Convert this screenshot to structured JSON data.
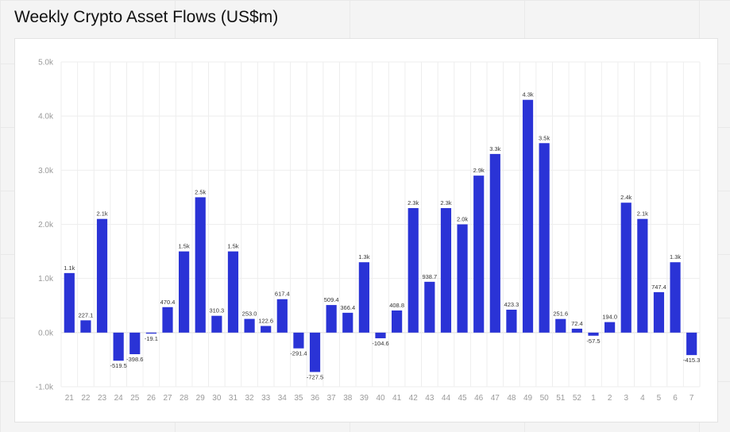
{
  "chart_data": {
    "type": "bar",
    "title": "Weekly Crypto Asset Flows (US$m)",
    "xlabel": "",
    "ylabel": "",
    "ylim": [
      -1000,
      5000
    ],
    "yticks": [
      -1000,
      0,
      1000,
      2000,
      3000,
      4000,
      5000
    ],
    "ytick_labels": [
      "-1.0k",
      "0.0k",
      "1.0k",
      "2.0k",
      "3.0k",
      "4.0k",
      "5.0k"
    ],
    "grid": true,
    "color": "#2a33d6",
    "categories": [
      "21",
      "22",
      "23",
      "24",
      "25",
      "26",
      "27",
      "28",
      "29",
      "30",
      "31",
      "32",
      "33",
      "34",
      "35",
      "36",
      "37",
      "38",
      "39",
      "40",
      "41",
      "42",
      "43",
      "44",
      "45",
      "46",
      "47",
      "48",
      "49",
      "50",
      "51",
      "52",
      "1",
      "2",
      "3",
      "4",
      "5",
      "6",
      "7"
    ],
    "values": [
      1100,
      227.1,
      2100,
      -519.5,
      -398.6,
      -19.1,
      470.4,
      1500,
      2500,
      310.3,
      1500,
      253.0,
      122.6,
      617.4,
      -291.4,
      -727.5,
      509.4,
      366.4,
      1300,
      -104.6,
      408.8,
      2300,
      938.7,
      2300,
      2000,
      2900,
      3300,
      423.3,
      4300,
      3500,
      251.6,
      72.4,
      -57.5,
      194.0,
      2400,
      2100,
      747.4,
      1300,
      -415.3
    ],
    "labels": [
      "1.1k",
      "227.1",
      "2.1k",
      "-519.5",
      "-398.6",
      "-19.1",
      "470.4",
      "1.5k",
      "2.5k",
      "310.3",
      "1.5k",
      "253.0",
      "122.6",
      "617.4",
      "-291.4",
      "-727.5",
      "509.4",
      "366.4",
      "1.3k",
      "-104.6",
      "408.8",
      "2.3k",
      "938.7",
      "2.3k",
      "2.0k",
      "2.9k",
      "3.3k",
      "423.3",
      "4.3k",
      "3.5k",
      "251.6",
      "72.4",
      "-57.5",
      "194.0",
      "2.4k",
      "2.1k",
      "747.4",
      "1.3k",
      "-415.3"
    ]
  }
}
